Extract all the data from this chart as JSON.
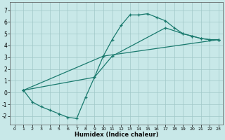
{
  "xlabel": "Humidex (Indice chaleur)",
  "xlim": [
    -0.5,
    23.5
  ],
  "ylim": [
    -2.7,
    7.7
  ],
  "xticks": [
    0,
    1,
    2,
    3,
    4,
    5,
    6,
    7,
    8,
    9,
    10,
    11,
    12,
    13,
    14,
    15,
    16,
    17,
    18,
    19,
    20,
    21,
    22,
    23
  ],
  "yticks": [
    -2,
    -1,
    0,
    1,
    2,
    3,
    4,
    5,
    6,
    7
  ],
  "background_color": "#c8e8e8",
  "line_color": "#1a7a6e",
  "grid_color": "#a0c8c8",
  "curve1_x": [
    1,
    2,
    3,
    4,
    5,
    6,
    7,
    8,
    9,
    10,
    11,
    12,
    13,
    14,
    15,
    16,
    17,
    18,
    19,
    20,
    21,
    22,
    23
  ],
  "curve1_y": [
    0.2,
    -0.8,
    -1.2,
    -1.5,
    -1.8,
    -2.1,
    -2.2,
    -0.4,
    1.3,
    3.1,
    4.5,
    5.7,
    6.6,
    6.6,
    6.7,
    6.4,
    6.1,
    5.5,
    5.0,
    4.8,
    4.6,
    4.5,
    4.5
  ],
  "curve2_x": [
    1,
    9,
    11,
    17,
    19,
    20,
    21,
    22,
    23
  ],
  "curve2_y": [
    0.2,
    1.3,
    3.1,
    5.5,
    5.0,
    4.8,
    4.6,
    4.5,
    4.5
  ],
  "curve3_x": [
    1,
    10,
    23
  ],
  "curve3_y": [
    0.2,
    3.1,
    4.5
  ]
}
